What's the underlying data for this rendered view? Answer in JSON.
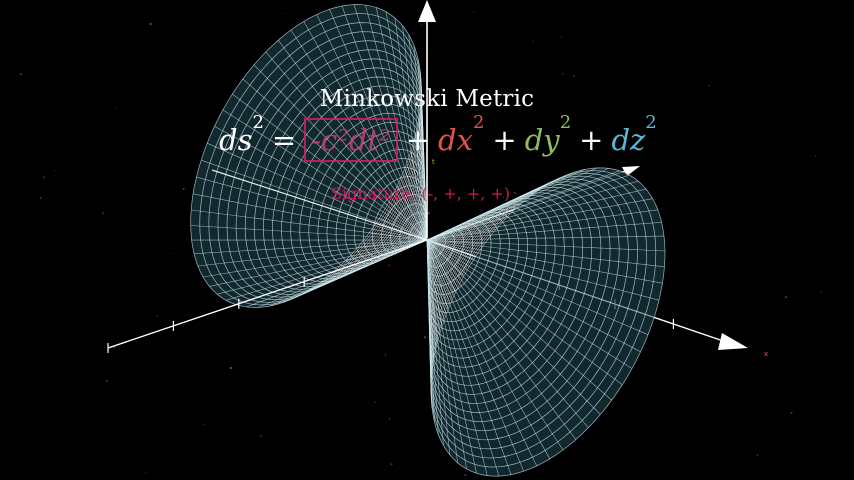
{
  "title": "Minkowski Metric",
  "equation": {
    "lhs": "ds",
    "lhs_exp": "2",
    "equals": "=",
    "time_term": "-c²dt²",
    "plus": "+",
    "x_term": "dx",
    "x_exp": "2",
    "y_term": "dy",
    "y_exp": "2",
    "z_term": "dz",
    "z_exp": "2"
  },
  "signature": "Signature: (-, +, +, +)",
  "axis_labels": {
    "x": "x",
    "time_small": "t"
  },
  "colors": {
    "background": "#000000",
    "cone_mesh": "#cfe9ef",
    "cone_fill": "#1b3a43",
    "axes": "#ffffff",
    "time_term": "#d81b60",
    "x_term": "#e0574a",
    "y_term": "#8bbf5b",
    "z_term": "#5bb8d4"
  }
}
